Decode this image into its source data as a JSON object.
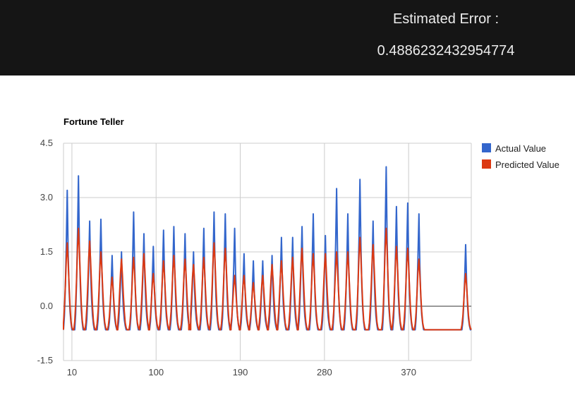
{
  "header": {
    "error_label": "Estimated Error :",
    "error_value": "0.4886232432954774"
  },
  "chart_data": {
    "type": "line",
    "title": "Fortune Teller",
    "xlabel": "",
    "ylabel": "",
    "xlim": [
      1,
      437
    ],
    "ylim": [
      -1.5,
      4.5
    ],
    "y_ticks": [
      "4.5",
      "3.0",
      "1.5",
      "0.0",
      "-1.5"
    ],
    "y_tick_values": [
      4.5,
      3.0,
      1.5,
      0.0,
      -1.5
    ],
    "x_ticks": [
      "10",
      "100",
      "190",
      "280",
      "370"
    ],
    "x_tick_values": [
      10,
      100,
      190,
      280,
      370
    ],
    "grid": true,
    "legend_position": "right",
    "colors": {
      "actual": "#3366cc",
      "predicted": "#dc3912"
    },
    "series": [
      {
        "name": "Actual Value",
        "color": "#3366cc",
        "baseline": -0.65,
        "shape": "sharp",
        "peaks": [
          [
            5,
            3.2
          ],
          [
            17,
            3.6
          ],
          [
            29,
            2.35
          ],
          [
            41,
            2.4
          ],
          [
            53,
            1.4
          ],
          [
            63,
            1.5
          ],
          [
            76,
            2.6
          ],
          [
            87,
            2.0
          ],
          [
            97,
            1.65
          ],
          [
            108,
            2.1
          ],
          [
            119,
            2.2
          ],
          [
            131,
            2.0
          ],
          [
            140,
            1.5
          ],
          [
            151,
            2.15
          ],
          [
            162,
            2.6
          ],
          [
            174,
            2.55
          ],
          [
            184,
            2.15
          ],
          [
            194,
            1.45
          ],
          [
            204,
            1.25
          ],
          [
            214,
            1.25
          ],
          [
            224,
            1.4
          ],
          [
            234,
            1.9
          ],
          [
            246,
            1.9
          ],
          [
            256,
            2.2
          ],
          [
            268,
            2.55
          ],
          [
            281,
            1.95
          ],
          [
            293,
            3.25
          ],
          [
            305,
            2.55
          ],
          [
            318,
            3.5
          ],
          [
            332,
            2.35
          ],
          [
            346,
            3.85
          ],
          [
            357,
            2.75
          ],
          [
            369,
            2.85
          ],
          [
            381,
            2.55
          ],
          [
            431,
            1.7
          ]
        ]
      },
      {
        "name": "Predicted Value",
        "color": "#dc3912",
        "baseline": -0.65,
        "shape": "smooth",
        "peaks": [
          [
            5,
            1.75
          ],
          [
            17,
            2.15
          ],
          [
            29,
            1.8
          ],
          [
            41,
            1.5
          ],
          [
            53,
            0.8
          ],
          [
            63,
            1.3
          ],
          [
            76,
            1.35
          ],
          [
            87,
            1.45
          ],
          [
            97,
            0.9
          ],
          [
            108,
            1.25
          ],
          [
            119,
            1.4
          ],
          [
            131,
            1.3
          ],
          [
            140,
            1.15
          ],
          [
            151,
            1.35
          ],
          [
            162,
            1.75
          ],
          [
            174,
            1.6
          ],
          [
            184,
            0.85
          ],
          [
            194,
            0.85
          ],
          [
            204,
            0.65
          ],
          [
            214,
            0.85
          ],
          [
            224,
            1.15
          ],
          [
            234,
            1.25
          ],
          [
            246,
            1.35
          ],
          [
            256,
            1.6
          ],
          [
            268,
            1.45
          ],
          [
            281,
            1.45
          ],
          [
            293,
            1.5
          ],
          [
            305,
            1.5
          ],
          [
            318,
            1.9
          ],
          [
            332,
            1.7
          ],
          [
            346,
            2.15
          ],
          [
            357,
            1.65
          ],
          [
            369,
            1.6
          ],
          [
            381,
            1.3
          ],
          [
            431,
            0.9
          ]
        ]
      }
    ]
  }
}
